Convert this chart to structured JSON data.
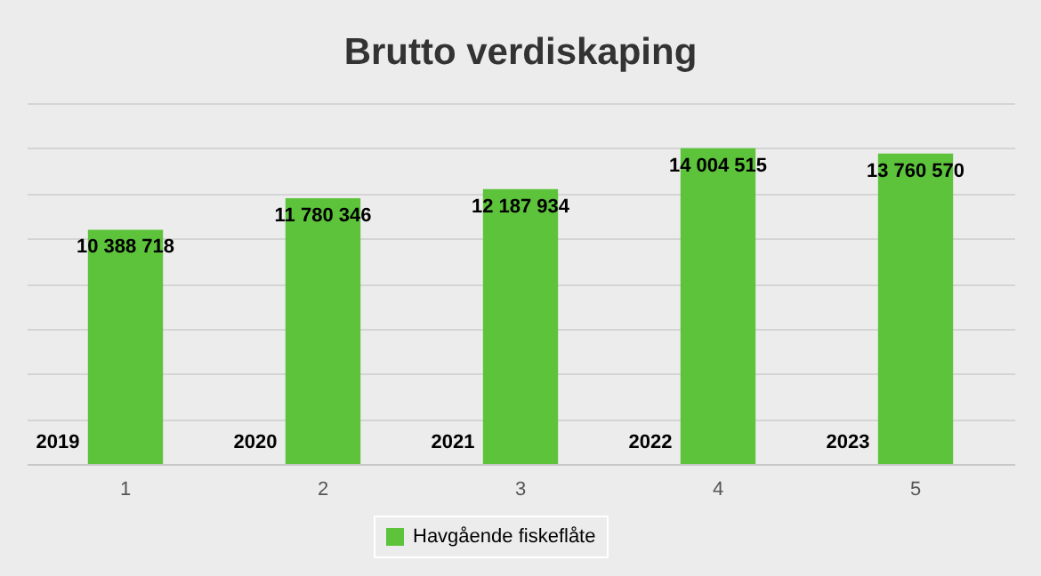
{
  "chart_data": {
    "type": "bar",
    "title": "Brutto verdiskaping",
    "categories": [
      "1",
      "2",
      "3",
      "4",
      "5"
    ],
    "series": [
      {
        "name": "Havgående fiskeflåte",
        "color": "#5cc33b",
        "values": [
          10388718,
          11780346,
          12187934,
          14004515,
          13760570
        ]
      }
    ],
    "data_labels": true,
    "annotations": [
      "2019",
      "2020",
      "2021",
      "2022",
      "2023"
    ],
    "grid": "y",
    "legend": "bottom",
    "tick_labels": "x"
  }
}
